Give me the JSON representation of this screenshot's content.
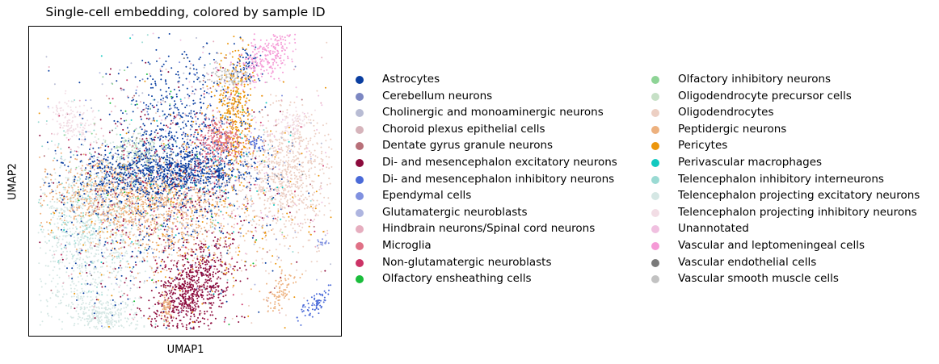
{
  "chart_data": {
    "type": "scatter",
    "title": "Single-cell embedding, colored by sample ID",
    "xlabel": "UMAP1",
    "ylabel": "UMAP2",
    "xlim": [
      0,
      100
    ],
    "ylim": [
      0,
      100
    ],
    "grid": false,
    "legend_placement": "right, two columns",
    "series": [
      {
        "name": "Astrocytes",
        "color": "#0a3ea0"
      },
      {
        "name": "Cerebellum neurons",
        "color": "#7c87c2"
      },
      {
        "name": "Cholinergic and monoaminergic neurons",
        "color": "#b8bcd4"
      },
      {
        "name": "Choroid plexus epithelial cells",
        "color": "#d6b4bb"
      },
      {
        "name": "Dentate gyrus granule neurons",
        "color": "#b87079"
      },
      {
        "name": "Di- and mesencephalon excitatory neurons",
        "color": "#8c0a3c"
      },
      {
        "name": "Di- and mesencephalon inhibitory neurons",
        "color": "#4a6ad8"
      },
      {
        "name": "Ependymal cells",
        "color": "#8091e0"
      },
      {
        "name": "Glutamatergic neuroblasts",
        "color": "#aeb5e0"
      },
      {
        "name": "Hindbrain neurons/Spinal cord neurons",
        "color": "#e6aebf"
      },
      {
        "name": "Microglia",
        "color": "#e07186"
      },
      {
        "name": "Non-glutamatergic neuroblasts",
        "color": "#cc3366"
      },
      {
        "name": "Olfactory ensheathing cells",
        "color": "#1bbd3c"
      },
      {
        "name": "Olfactory inhibitory neurons",
        "color": "#8ed496"
      },
      {
        "name": "Oligodendrocyte precursor cells",
        "color": "#c6e0c6"
      },
      {
        "name": "Oligodendrocytes",
        "color": "#eccfc3"
      },
      {
        "name": "Peptidergic neurons",
        "color": "#edb17e"
      },
      {
        "name": "Pericytes",
        "color": "#ec960c"
      },
      {
        "name": "Perivascular macrophages",
        "color": "#12c9c0"
      },
      {
        "name": "Telencephalon inhibitory interneurons",
        "color": "#9adad3"
      },
      {
        "name": "Telencephalon projecting excitatory neurons",
        "color": "#d5e7e4"
      },
      {
        "name": "Telencephalon projecting inhibitory neurons",
        "color": "#f2dde5"
      },
      {
        "name": "Unannotated",
        "color": "#f0c0e0"
      },
      {
        "name": "Vascular and leptomeningeal cells",
        "color": "#f59ad6"
      },
      {
        "name": "Vascular endothelial cells",
        "color": "#7a7a7a"
      },
      {
        "name": "Vascular smooth muscle cells",
        "color": "#c2c2c2"
      }
    ]
  }
}
